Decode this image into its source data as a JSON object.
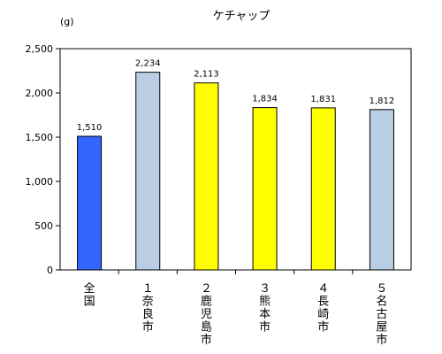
{
  "chart_data": {
    "type": "bar",
    "title": "ケチャップ",
    "unit_label": "(g)",
    "categories": [
      "全国",
      "１奈良市",
      "２鹿児島市",
      "３熊本市",
      "４長崎市",
      "５名古屋市"
    ],
    "category_rank": [
      "",
      "１",
      "２",
      "３",
      "４",
      "５"
    ],
    "category_names": [
      "全国",
      "奈良市",
      "鹿児島市",
      "熊本市",
      "長崎市",
      "名古屋市"
    ],
    "values": [
      1510,
      2234,
      2113,
      1834,
      1831,
      1812
    ],
    "value_labels": [
      "1,510",
      "2,234",
      "2,113",
      "1,834",
      "1,831",
      "1,812"
    ],
    "bar_colors": [
      "#3366ff",
      "#b9cde5",
      "#ffff00",
      "#ffff00",
      "#ffff00",
      "#b9cde5"
    ],
    "ylim": [
      0,
      2500
    ],
    "yticks": [
      0,
      500,
      1000,
      1500,
      2000,
      2500
    ],
    "ytick_labels": [
      "0",
      "500",
      "1,000",
      "1,500",
      "2,000",
      "2,500"
    ],
    "grid": false,
    "legend": "none"
  }
}
